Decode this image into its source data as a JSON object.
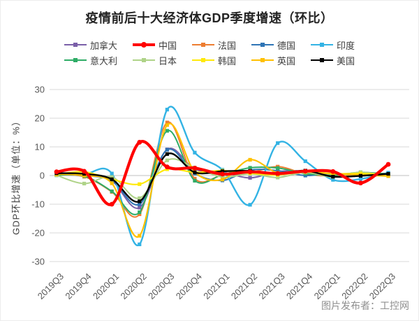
{
  "watermark": "图片发布者：工控网",
  "chart_data": {
    "type": "line",
    "title": "疫情前后十大经济体GDP季度增速（环比）",
    "xlabel": "",
    "ylabel": "GDP环比增速（单位：%）",
    "ylim": [
      -30,
      30
    ],
    "yticks": [
      30,
      20,
      10,
      0,
      -10,
      -20,
      -30
    ],
    "grid": true,
    "legend_position": "top",
    "line_style": "smooth",
    "gridline_color": "#d9d9d9",
    "zero_line_color": "#bfbfbf",
    "tick_label_color": "#595959",
    "categories": [
      "2019Q3",
      "2019Q4",
      "2020Q1",
      "2020Q2",
      "2020Q3",
      "2020Q4",
      "2021Q1",
      "2021Q2",
      "2021Q3",
      "2021Q4",
      "2022Q1",
      "2022Q2",
      "2022Q3"
    ],
    "series": [
      {
        "name": "加拿大",
        "key": "canada",
        "color": "#7A5FA8",
        "line_width": 2,
        "marker": "square",
        "values": [
          0.3,
          0.1,
          -1.9,
          -11.2,
          9.1,
          2.2,
          1.2,
          -0.8,
          1.4,
          1.6,
          0.6,
          0.8,
          0.7
        ]
      },
      {
        "name": "中国",
        "key": "china",
        "color": "#FF0000",
        "line_width": 4.2,
        "marker": "circle",
        "values": [
          1.3,
          1.5,
          -10.0,
          11.6,
          3.0,
          2.6,
          0.5,
          1.3,
          0.7,
          1.5,
          1.4,
          -2.6,
          3.9
        ]
      },
      {
        "name": "法国",
        "key": "france",
        "color": "#ED7D31",
        "line_width": 2,
        "marker": "square",
        "values": [
          0.2,
          -0.4,
          -5.7,
          -13.5,
          18.5,
          -1.1,
          0.1,
          1.0,
          3.1,
          0.6,
          -0.2,
          0.5,
          0.2
        ]
      },
      {
        "name": "德国",
        "key": "germany",
        "color": "#2E74B5",
        "line_width": 2,
        "marker": "square",
        "values": [
          0.2,
          0.0,
          -1.8,
          -10.0,
          9.0,
          0.7,
          -1.7,
          1.9,
          1.7,
          0.0,
          0.8,
          0.1,
          0.4
        ]
      },
      {
        "name": "印度",
        "key": "india",
        "color": "#33B3E4",
        "line_width": 2.4,
        "marker": "square",
        "values": [
          1.0,
          0.5,
          0.7,
          -24.0,
          23.0,
          8.0,
          2.0,
          -10.2,
          11.3,
          5.0,
          -1.5,
          -1.2,
          1.0
        ]
      },
      {
        "name": "意大利",
        "key": "italy",
        "color": "#2EAC66",
        "line_width": 2,
        "marker": "square",
        "values": [
          0.1,
          -0.2,
          -5.5,
          -12.8,
          15.6,
          -1.8,
          0.3,
          2.7,
          2.6,
          0.7,
          0.1,
          1.1,
          0.5
        ]
      },
      {
        "name": "日本",
        "key": "japan",
        "color": "#AFD388",
        "line_width": 2,
        "marker": "square",
        "values": [
          0.1,
          -2.8,
          -0.5,
          -7.9,
          5.3,
          2.8,
          -0.5,
          0.6,
          -0.7,
          1.1,
          -0.5,
          1.2,
          -0.2
        ]
      },
      {
        "name": "韩国",
        "key": "korea",
        "color": "#FFE90A",
        "line_width": 2.2,
        "marker": "square",
        "values": [
          0.4,
          1.3,
          -1.3,
          -3.0,
          2.2,
          1.1,
          1.7,
          0.8,
          0.2,
          1.3,
          0.6,
          0.7,
          0.3
        ]
      },
      {
        "name": "英国",
        "key": "uk",
        "color": "#FFC000",
        "line_width": 2.2,
        "marker": "square",
        "values": [
          0.5,
          0.0,
          -2.7,
          -21.0,
          17.6,
          1.3,
          -1.4,
          5.5,
          0.9,
          1.3,
          0.7,
          0.2,
          -0.2
        ]
      },
      {
        "name": "美国",
        "key": "usa",
        "color": "#000000",
        "line_width": 2.4,
        "marker": "square",
        "values": [
          0.8,
          0.6,
          -1.3,
          -9.0,
          7.5,
          1.1,
          1.5,
          1.6,
          0.6,
          1.7,
          -0.4,
          -0.1,
          0.6
        ]
      }
    ]
  }
}
